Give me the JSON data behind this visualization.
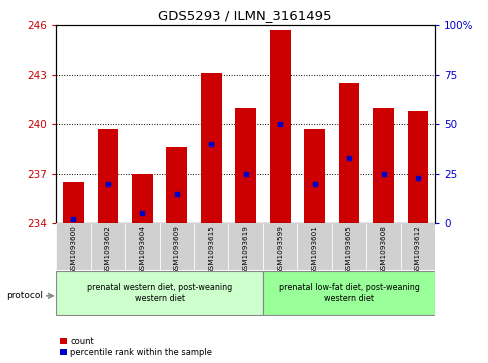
{
  "title": "GDS5293 / ILMN_3161495",
  "samples": [
    "GSM1093600",
    "GSM1093602",
    "GSM1093604",
    "GSM1093609",
    "GSM1093615",
    "GSM1093619",
    "GSM1093599",
    "GSM1093601",
    "GSM1093605",
    "GSM1093608",
    "GSM1093612"
  ],
  "counts": [
    236.5,
    239.7,
    237.0,
    238.6,
    243.1,
    241.0,
    245.7,
    239.7,
    242.5,
    241.0,
    240.8
  ],
  "percentiles": [
    2,
    20,
    5,
    15,
    40,
    25,
    50,
    20,
    33,
    25,
    23
  ],
  "ylim_left": [
    234,
    246
  ],
  "ylim_right": [
    0,
    100
  ],
  "yticks_left": [
    234,
    237,
    240,
    243,
    246
  ],
  "yticks_right": [
    0,
    25,
    50,
    75,
    100
  ],
  "bar_color": "#cc0000",
  "dot_color": "#0000cc",
  "bar_width": 0.6,
  "baseline": 234,
  "group1_label": "prenatal western diet, post-weaning\nwestern diet",
  "group2_label": "prenatal low-fat diet, post-weaning\nwestern diet",
  "group1_count": 6,
  "group2_count": 5,
  "group1_color": "#ccffcc",
  "group2_color": "#99ff99",
  "protocol_label": "protocol",
  "legend_count_label": "count",
  "legend_percentile_label": "percentile rank within the sample",
  "tick_color_left": "#cc0000",
  "tick_color_right": "#0000cc"
}
